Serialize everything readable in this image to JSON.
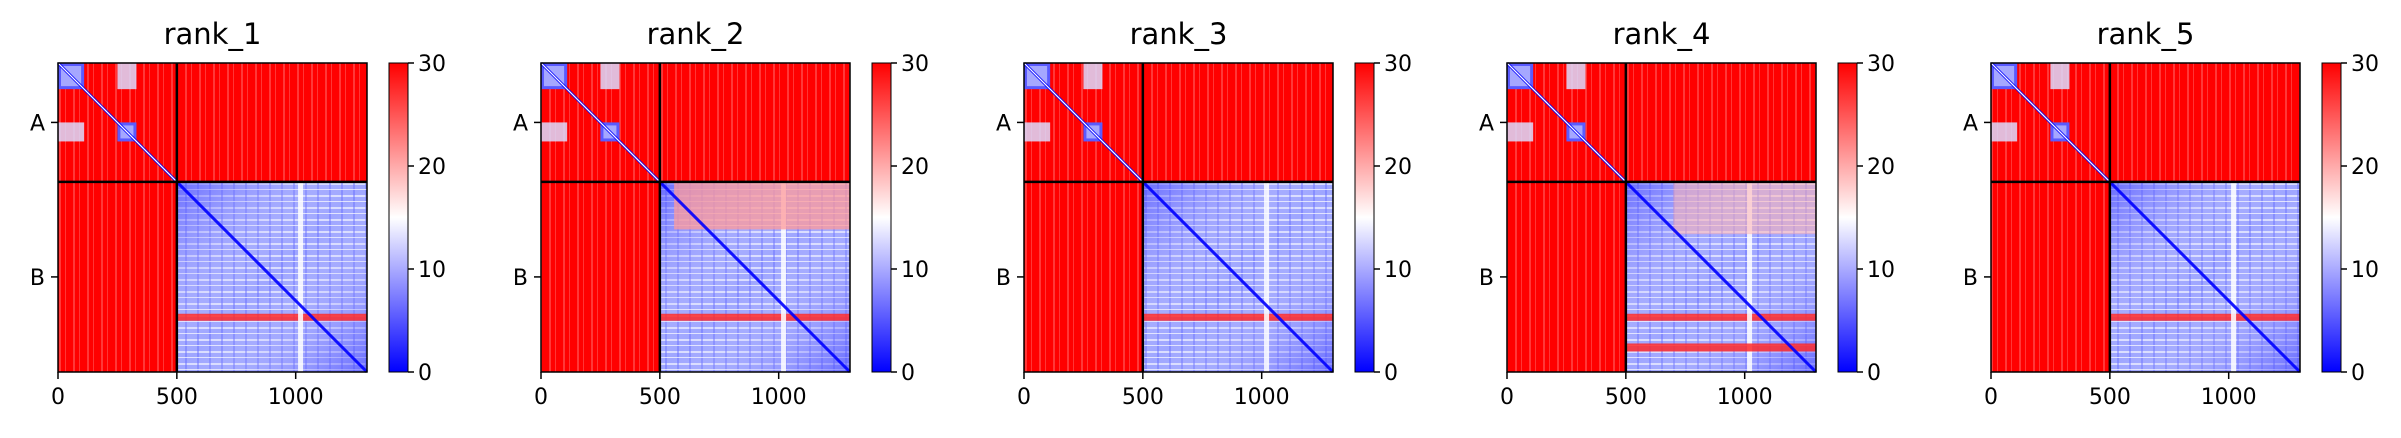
{
  "chart_data": {
    "type": "heatmap",
    "description_note": "",
    "x_ticks": [
      0,
      500,
      1000
    ],
    "x_range": [
      0,
      1300
    ],
    "y_range": [
      0,
      1300
    ],
    "chains": [
      {
        "label": "A",
        "start": 0,
        "end": 500
      },
      {
        "label": "B",
        "start": 500,
        "end": 1300
      }
    ],
    "colorbar": {
      "ticks": [
        0,
        10,
        20,
        30
      ],
      "range": [
        0,
        30
      ],
      "colormap": [
        "#0000ff",
        "#ffffff",
        "#ff0000"
      ]
    },
    "panels": [
      {
        "title": "rank_1"
      },
      {
        "title": "rank_2"
      },
      {
        "title": "rank_3"
      },
      {
        "title": "rank_4"
      },
      {
        "title": "rank_5"
      }
    ]
  }
}
